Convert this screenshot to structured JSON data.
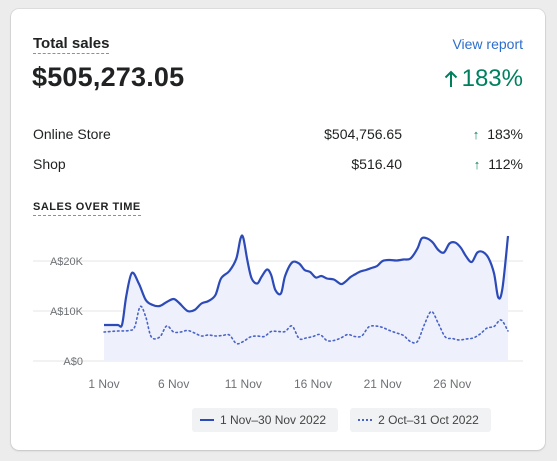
{
  "card": {
    "title": "Total sales",
    "view_report": "View report",
    "total": "$505,273.05",
    "total_change": "183%",
    "breakdown": [
      {
        "channel": "Online Store",
        "value": "$504,756.65",
        "change": "183%"
      },
      {
        "channel": "Shop",
        "value": "$516.40",
        "change": "112%"
      }
    ],
    "section_title": "SALES OVER TIME",
    "accent": "#2c6ecb",
    "positive_color": "#007f5f"
  },
  "chart_data": {
    "type": "line",
    "y_ticks": [
      "A$20K",
      "A$10K",
      "A$0"
    ],
    "y_tick_values": [
      20000,
      10000,
      0
    ],
    "x_ticks": [
      "1 Nov",
      "6 Nov",
      "11 Nov",
      "16 Nov",
      "21 Nov",
      "26 Nov"
    ],
    "x_tick_days": [
      1,
      6,
      11,
      16,
      21,
      26
    ],
    "ylim": [
      0,
      25000
    ],
    "xlim": [
      1,
      30
    ],
    "series": [
      {
        "name": "1 Nov–30 Nov 2022",
        "style": "solid",
        "color": "#2c4bb8",
        "x": [
          1,
          1.5,
          2,
          2.3,
          2.6,
          3,
          3.5,
          4,
          4.5,
          5,
          5.5,
          6,
          6.4,
          7,
          7.5,
          8,
          8.5,
          9,
          9.4,
          10,
          10.5,
          10.8,
          11,
          11.3,
          11.6,
          12,
          12.3,
          12.7,
          13,
          13.3,
          13.7,
          14,
          14.5,
          15,
          15.4,
          15.8,
          16.2,
          16.6,
          17,
          17.5,
          18,
          18.3,
          18.7,
          19,
          19.4,
          19.8,
          20.2,
          20.6,
          21,
          21.5,
          22,
          22.5,
          23,
          23.5,
          23.8,
          24.2,
          24.6,
          25,
          25.4,
          25.8,
          26.2,
          26.6,
          27,
          27.4,
          27.8,
          28.2,
          28.6,
          29,
          29.3,
          29.6,
          30
        ],
        "y": [
          7200,
          7200,
          7200,
          7300,
          13000,
          17600,
          15500,
          12200,
          11200,
          11000,
          11800,
          12400,
          11600,
          10000,
          10200,
          11500,
          12000,
          13200,
          16500,
          18000,
          20500,
          24500,
          24600,
          20000,
          16500,
          15500,
          16800,
          18300,
          17200,
          14200,
          13500,
          17000,
          19700,
          19500,
          18200,
          17800,
          16700,
          17000,
          16500,
          16300,
          15400,
          15800,
          16800,
          17300,
          17900,
          18200,
          18600,
          19000,
          20000,
          20200,
          20100,
          20300,
          20500,
          22500,
          24500,
          24500,
          23700,
          22200,
          21700,
          23500,
          23700,
          22700,
          20900,
          19800,
          21700,
          21800,
          20600,
          17500,
          12700,
          14500,
          25000
        ]
      },
      {
        "name": "2 Oct–31 Oct 2022",
        "style": "dotted",
        "color": "#4a64c6",
        "x": [
          1,
          2,
          2.8,
          3.2,
          3.6,
          4,
          4.4,
          5,
          5.5,
          6,
          6.5,
          7,
          7.5,
          8,
          8.5,
          9,
          9.5,
          10,
          10.5,
          11,
          11.5,
          12,
          12.5,
          13,
          13.5,
          14,
          14.5,
          15,
          15.5,
          16,
          16.5,
          17,
          17.5,
          18,
          18.5,
          19,
          19.5,
          20,
          20.5,
          21,
          21.5,
          22,
          22.5,
          23,
          23.5,
          24,
          24.5,
          25,
          25.5,
          26,
          26.5,
          27,
          27.5,
          28,
          28.5,
          29,
          29.5,
          30
        ],
        "y": [
          5800,
          6000,
          6100,
          6800,
          10900,
          8800,
          4800,
          4800,
          7000,
          5800,
          5800,
          6100,
          5600,
          5000,
          5200,
          5000,
          5100,
          5200,
          3500,
          3900,
          4800,
          5000,
          4900,
          5900,
          5900,
          5900,
          7000,
          4500,
          4600,
          4900,
          5300,
          4100,
          4100,
          4600,
          5300,
          4900,
          5000,
          6800,
          7000,
          6700,
          6100,
          5600,
          5100,
          3900,
          3900,
          7300,
          9900,
          7500,
          4800,
          4500,
          4200,
          4400,
          4600,
          5400,
          6600,
          6900,
          8200,
          6000
        ]
      }
    ]
  }
}
